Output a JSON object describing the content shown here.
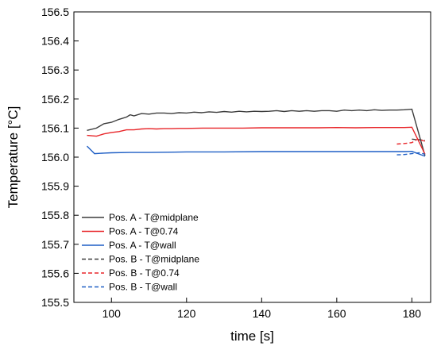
{
  "chart_data": {
    "type": "line",
    "xlabel": "time [s]",
    "ylabel": "Temperature [°C]",
    "xlim": [
      90,
      185
    ],
    "ylim": [
      155.5,
      156.5
    ],
    "xticks": [
      100,
      120,
      140,
      160,
      180
    ],
    "yticks": [
      155.5,
      155.6,
      155.7,
      155.8,
      155.9,
      156.0,
      156.1,
      156.2,
      156.3,
      156.4,
      156.5
    ],
    "grid": false,
    "legend_position": "lower-left",
    "series": [
      {
        "name": "Pos. A - T@midplane",
        "color": "#3c3c3c",
        "dash": "solid",
        "x": [
          93.5,
          96,
          98,
          100,
          102,
          104,
          105,
          106,
          108,
          110,
          112,
          114,
          116,
          118,
          120,
          122,
          124,
          126,
          128,
          130,
          132,
          134,
          136,
          138,
          140,
          142,
          144,
          146,
          148,
          150,
          152,
          154,
          156,
          158,
          160,
          162,
          164,
          166,
          168,
          170,
          172,
          174,
          176,
          178,
          180,
          183.5
        ],
        "y": [
          156.092,
          156.1,
          156.115,
          156.12,
          156.13,
          156.138,
          156.146,
          156.142,
          156.15,
          156.148,
          156.152,
          156.152,
          156.15,
          156.153,
          156.152,
          156.155,
          156.153,
          156.156,
          156.154,
          156.157,
          156.155,
          156.158,
          156.156,
          156.158,
          156.157,
          156.158,
          156.16,
          156.157,
          156.16,
          156.158,
          156.16,
          156.158,
          156.16,
          156.16,
          156.158,
          156.162,
          156.16,
          156.162,
          156.16,
          156.163,
          156.161,
          156.162,
          156.162,
          156.163,
          156.165,
          156.005
        ]
      },
      {
        "name": "Pos. A - T@0.74",
        "color": "#e8262a",
        "dash": "solid",
        "x": [
          93.5,
          96,
          98,
          100,
          102,
          104,
          106,
          108,
          110,
          112,
          114,
          116,
          118,
          120,
          125,
          130,
          135,
          140,
          145,
          150,
          155,
          160,
          165,
          170,
          175,
          178,
          180,
          183.5
        ],
        "y": [
          156.075,
          156.072,
          156.08,
          156.085,
          156.088,
          156.094,
          156.094,
          156.097,
          156.098,
          156.097,
          156.098,
          156.098,
          156.099,
          156.099,
          156.1,
          156.1,
          156.1,
          156.101,
          156.101,
          156.101,
          156.101,
          156.102,
          156.101,
          156.102,
          156.102,
          156.102,
          156.103,
          156.01
        ]
      },
      {
        "name": "Pos. A - T@wall",
        "color": "#1f5fc5",
        "dash": "solid",
        "x": [
          93.5,
          95.5,
          98,
          100,
          105,
          110,
          115,
          120,
          130,
          140,
          150,
          160,
          170,
          178,
          180,
          183.5
        ],
        "y": [
          156.038,
          156.012,
          156.014,
          156.015,
          156.016,
          156.016,
          156.017,
          156.018,
          156.018,
          156.019,
          156.019,
          156.019,
          156.019,
          156.019,
          156.02,
          156.003
        ]
      },
      {
        "name": "Pos. B - T@midplane",
        "color": "#3c3c3c",
        "dash": "dashed",
        "x": [
          180,
          181.5,
          183.5
        ],
        "y": [
          156.062,
          156.06,
          156.058
        ]
      },
      {
        "name": "Pos. B - T@0.74",
        "color": "#e8262a",
        "dash": "dashed",
        "x": [
          176,
          178,
          180,
          181.5,
          183.5
        ],
        "y": [
          156.045,
          156.047,
          156.05,
          156.062,
          156.055
        ]
      },
      {
        "name": "Pos. B - T@wall",
        "color": "#1f5fc5",
        "dash": "dashed",
        "x": [
          176,
          178,
          180,
          182,
          183.5
        ],
        "y": [
          156.008,
          156.009,
          156.012,
          156.015,
          156.01
        ]
      }
    ]
  }
}
